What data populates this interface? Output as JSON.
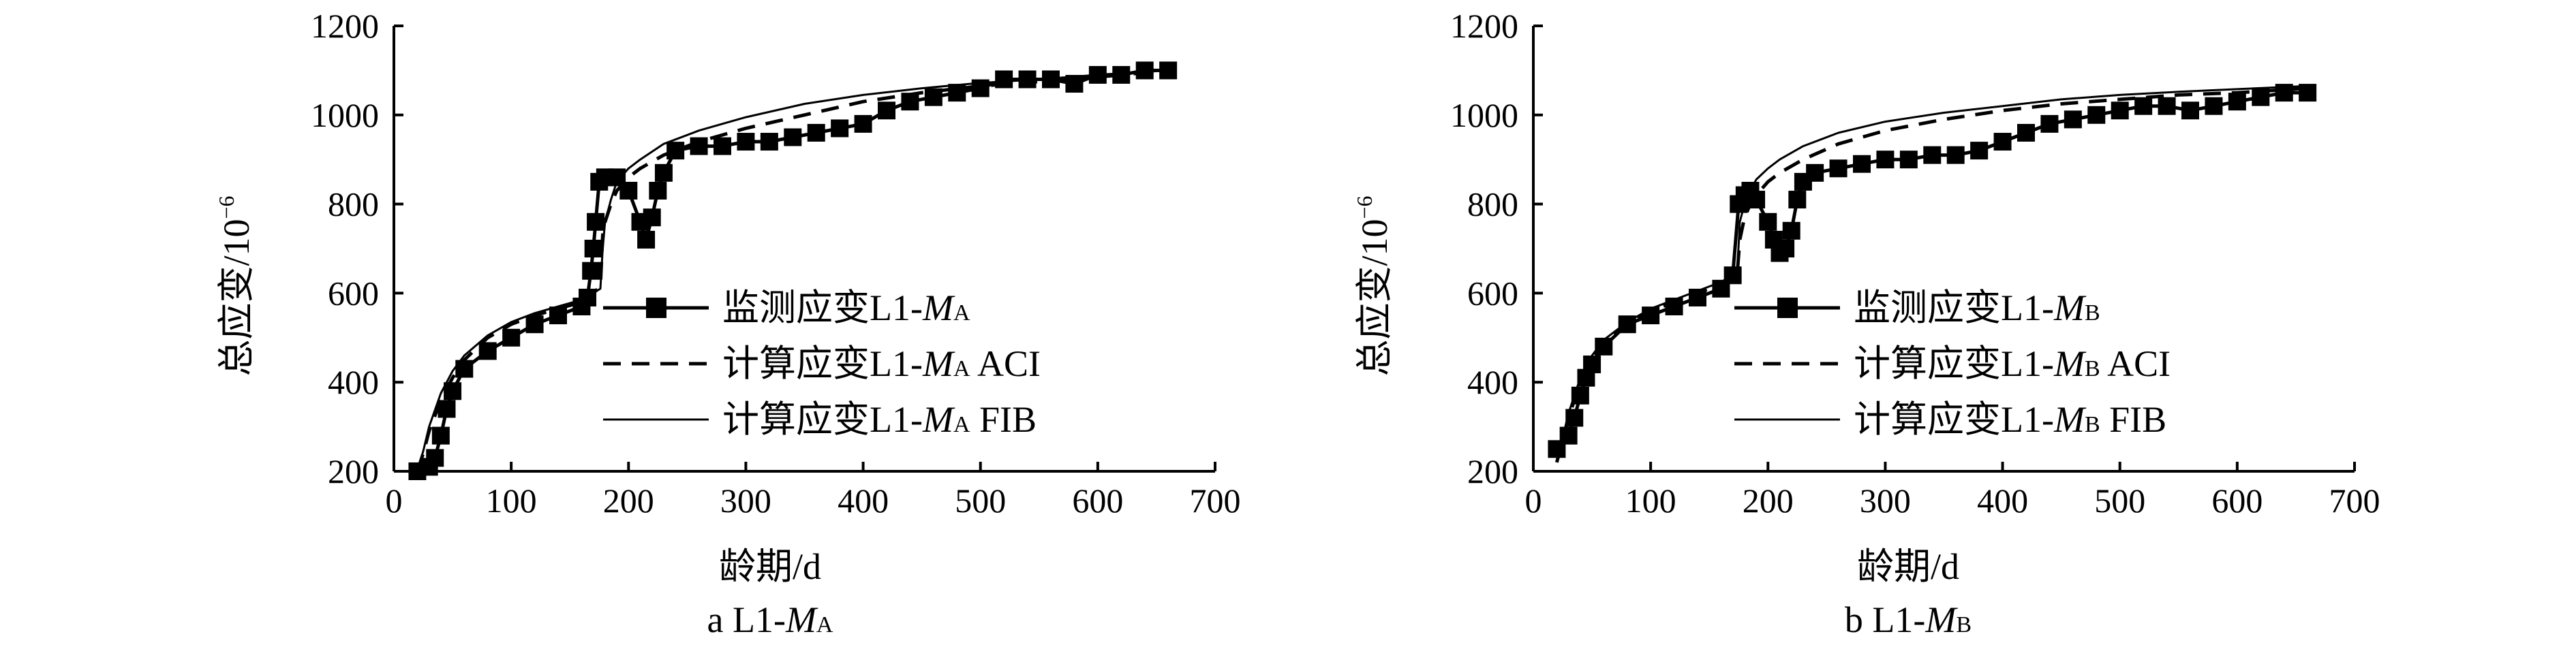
{
  "chart_data": [
    {
      "type": "line",
      "caption": {
        "prefix": "a",
        "var_a": "L1-",
        "var_b": "M",
        "var_c": "A"
      },
      "xlabel": "龄期/d",
      "ylabel": {
        "main": "总应变/10",
        "sup": "−6"
      },
      "xlim": [
        0,
        700
      ],
      "ylim": [
        200,
        1200
      ],
      "xticks": [
        0,
        100,
        200,
        300,
        400,
        500,
        600,
        700
      ],
      "yticks": [
        200,
        400,
        600,
        800,
        1000,
        1200
      ],
      "grid": false,
      "legend_position": "center-right",
      "series": [
        {
          "legend": {
            "a": "监测应变L1-",
            "b": "M",
            "c": "A",
            "d": ""
          },
          "style": "solid-square-markers",
          "x": [
            20,
            30,
            35,
            40,
            45,
            50,
            60,
            80,
            100,
            120,
            140,
            160,
            165,
            168,
            170,
            172,
            175,
            180,
            190,
            200,
            210,
            215,
            220,
            225,
            230,
            240,
            260,
            280,
            300,
            320,
            340,
            360,
            380,
            400,
            420,
            440,
            460,
            480,
            500,
            520,
            540,
            560,
            580,
            600,
            620,
            640,
            660
          ],
          "y": [
            200,
            210,
            230,
            280,
            340,
            380,
            430,
            470,
            500,
            530,
            550,
            570,
            590,
            650,
            700,
            760,
            850,
            860,
            860,
            830,
            760,
            720,
            770,
            830,
            870,
            920,
            930,
            930,
            940,
            940,
            950,
            960,
            970,
            980,
            1010,
            1030,
            1040,
            1050,
            1060,
            1080,
            1080,
            1080,
            1070,
            1090,
            1090,
            1100,
            1100
          ]
        },
        {
          "legend": {
            "a": "计算应变L1-",
            "b": "M",
            "c": "A",
            "d": " ACI"
          },
          "style": "dashed",
          "x": [
            20,
            25,
            30,
            40,
            50,
            60,
            80,
            100,
            120,
            140,
            160,
            170,
            176,
            178,
            180,
            185,
            190,
            200,
            210,
            230,
            260,
            300,
            350,
            400,
            450,
            500,
            550,
            600,
            660
          ],
          "y": [
            200,
            240,
            290,
            360,
            410,
            450,
            500,
            530,
            550,
            565,
            580,
            600,
            615,
            730,
            760,
            800,
            830,
            860,
            880,
            910,
            940,
            970,
            1000,
            1030,
            1050,
            1065,
            1075,
            1085,
            1100
          ]
        },
        {
          "legend": {
            "a": "计算应变L1-",
            "b": "M",
            "c": "A",
            "d": " FIB"
          },
          "style": "solid",
          "x": [
            20,
            25,
            30,
            40,
            50,
            60,
            80,
            100,
            120,
            140,
            160,
            170,
            176,
            178,
            180,
            185,
            190,
            200,
            210,
            230,
            260,
            300,
            350,
            400,
            450,
            500,
            550,
            600,
            660
          ],
          "y": [
            200,
            245,
            300,
            375,
            425,
            460,
            505,
            535,
            555,
            570,
            585,
            600,
            610,
            700,
            760,
            810,
            850,
            880,
            900,
            935,
            965,
            995,
            1025,
            1045,
            1060,
            1072,
            1080,
            1090,
            1100
          ]
        }
      ]
    },
    {
      "type": "line",
      "caption": {
        "prefix": "b",
        "var_a": "L1-",
        "var_b": "M",
        "var_c": "B"
      },
      "xlabel": "龄期/d",
      "ylabel": {
        "main": "总应变/10",
        "sup": "−6"
      },
      "xlim": [
        0,
        700
      ],
      "ylim": [
        200,
        1200
      ],
      "xticks": [
        0,
        100,
        200,
        300,
        400,
        500,
        600,
        700
      ],
      "yticks": [
        200,
        400,
        600,
        800,
        1000,
        1200
      ],
      "grid": false,
      "legend_position": "center-right",
      "series": [
        {
          "legend": {
            "a": "监测应变L1-",
            "b": "M",
            "c": "B",
            "d": ""
          },
          "style": "solid-square-markers",
          "x": [
            20,
            30,
            35,
            40,
            45,
            50,
            60,
            80,
            100,
            120,
            140,
            160,
            170,
            175,
            180,
            185,
            190,
            200,
            205,
            210,
            215,
            220,
            225,
            230,
            240,
            260,
            280,
            300,
            320,
            340,
            360,
            380,
            400,
            420,
            440,
            460,
            480,
            500,
            520,
            540,
            560,
            580,
            600,
            620,
            640,
            660
          ],
          "y": [
            250,
            280,
            320,
            370,
            410,
            440,
            480,
            530,
            550,
            570,
            590,
            610,
            640,
            800,
            820,
            830,
            810,
            760,
            720,
            690,
            700,
            740,
            810,
            850,
            870,
            880,
            890,
            900,
            900,
            910,
            910,
            920,
            940,
            960,
            980,
            990,
            1000,
            1010,
            1020,
            1020,
            1010,
            1020,
            1030,
            1040,
            1050,
            1050
          ]
        },
        {
          "legend": {
            "a": "计算应变L1-",
            "b": "M",
            "c": "B",
            "d": " ACI"
          },
          "style": "dashed",
          "x": [
            20,
            25,
            30,
            40,
            50,
            60,
            80,
            100,
            120,
            140,
            160,
            170,
            174,
            176,
            180,
            185,
            190,
            200,
            210,
            230,
            260,
            300,
            350,
            400,
            450,
            500,
            550,
            600,
            660
          ],
          "y": [
            220,
            270,
            320,
            400,
            450,
            490,
            530,
            560,
            580,
            600,
            620,
            635,
            650,
            720,
            770,
            800,
            820,
            850,
            870,
            900,
            935,
            965,
            990,
            1010,
            1025,
            1035,
            1045,
            1050,
            1060
          ]
        },
        {
          "legend": {
            "a": "计算应变L1-",
            "b": "M",
            "c": "B",
            "d": " FIB"
          },
          "style": "solid",
          "x": [
            20,
            25,
            30,
            40,
            50,
            60,
            80,
            100,
            120,
            140,
            160,
            170,
            174,
            176,
            180,
            185,
            190,
            200,
            210,
            230,
            260,
            300,
            350,
            400,
            450,
            500,
            550,
            600,
            660
          ],
          "y": [
            220,
            275,
            330,
            410,
            460,
            495,
            535,
            565,
            585,
            605,
            625,
            640,
            655,
            760,
            800,
            830,
            855,
            880,
            900,
            930,
            960,
            985,
            1005,
            1020,
            1035,
            1045,
            1052,
            1058,
            1065
          ]
        }
      ]
    }
  ]
}
